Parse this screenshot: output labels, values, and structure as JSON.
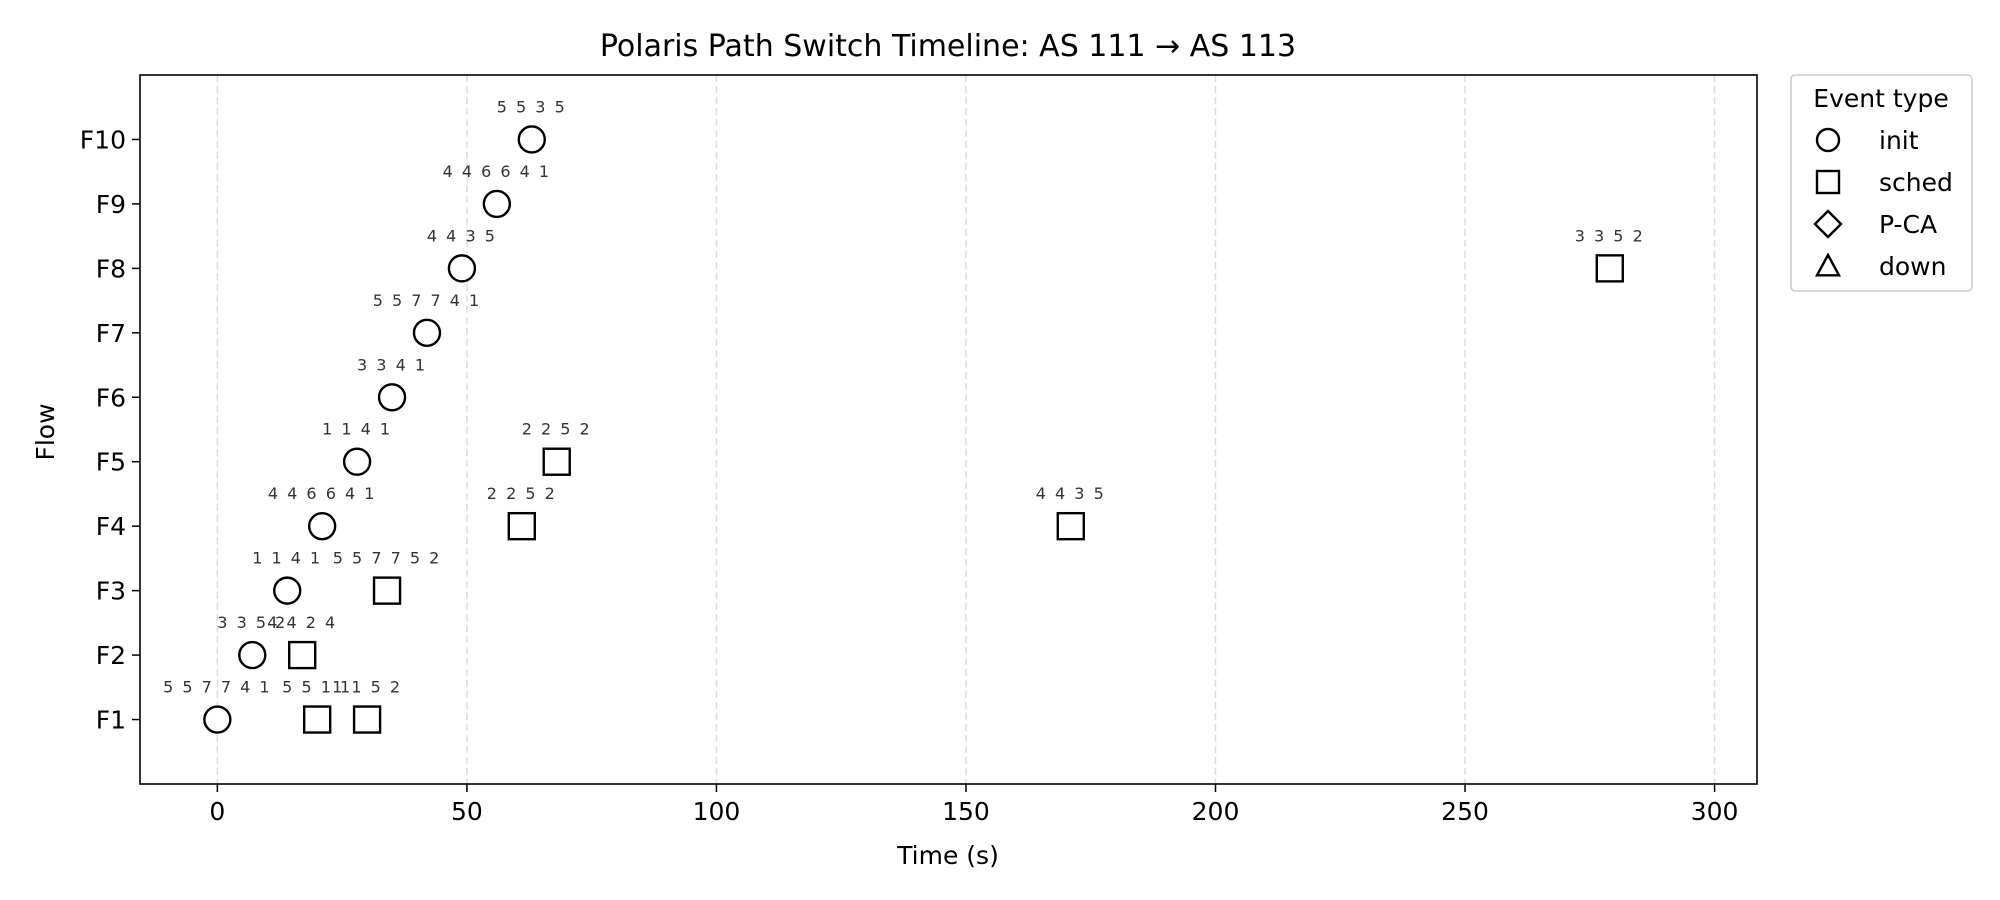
{
  "chart_data": {
    "type": "scatter",
    "title": "Polaris Path Switch Timeline: AS 111 → AS 113",
    "xlabel": "Time (s)",
    "ylabel": "Flow",
    "xlim": [
      -15.5,
      308.5
    ],
    "x_ticks": [
      0,
      50,
      100,
      150,
      200,
      250,
      300
    ],
    "x_tick_labels": [
      "0",
      "50",
      "100",
      "150",
      "200",
      "250",
      "300"
    ],
    "categories": [
      "F1",
      "F2",
      "F3",
      "F4",
      "F5",
      "F6",
      "F7",
      "F8",
      "F9",
      "F10"
    ],
    "grid": "vertical dashed",
    "legend": {
      "title": "Event type",
      "placement": "outside-right-top",
      "entries": [
        {
          "label": "init",
          "marker": "circle"
        },
        {
          "label": "sched",
          "marker": "square"
        },
        {
          "label": "P-CA",
          "marker": "diamond"
        },
        {
          "label": "down",
          "marker": "triangle"
        }
      ]
    },
    "events": [
      {
        "flow": "F1",
        "x": 0,
        "type": "init",
        "label": "5 5 7 7 4 1"
      },
      {
        "flow": "F1",
        "x": 20,
        "type": "sched",
        "label": "5 5 1 1"
      },
      {
        "flow": "F1",
        "x": 30,
        "type": "sched",
        "label": "1 1 5 2"
      },
      {
        "flow": "F2",
        "x": 7,
        "type": "init",
        "label": "3 3 5 2"
      },
      {
        "flow": "F2",
        "x": 17,
        "type": "sched",
        "label": "4 4 2 4"
      },
      {
        "flow": "F3",
        "x": 14,
        "type": "init",
        "label": "1 1 4 1"
      },
      {
        "flow": "F3",
        "x": 34,
        "type": "sched",
        "label": "5 5 7 7 5 2"
      },
      {
        "flow": "F4",
        "x": 21,
        "type": "init",
        "label": "4 4 6 6 4 1"
      },
      {
        "flow": "F4",
        "x": 61,
        "type": "sched",
        "label": "2 2 5 2"
      },
      {
        "flow": "F4",
        "x": 171,
        "type": "sched",
        "label": "4 4 3 5"
      },
      {
        "flow": "F5",
        "x": 28,
        "type": "init",
        "label": "1 1 4 1"
      },
      {
        "flow": "F5",
        "x": 68,
        "type": "sched",
        "label": "2 2 5 2"
      },
      {
        "flow": "F6",
        "x": 35,
        "type": "init",
        "label": "3 3 4 1"
      },
      {
        "flow": "F7",
        "x": 42,
        "type": "init",
        "label": "5 5 7 7 4 1"
      },
      {
        "flow": "F8",
        "x": 49,
        "type": "init",
        "label": "4 4 3 5"
      },
      {
        "flow": "F8",
        "x": 279,
        "type": "sched",
        "label": "3 3 5 2"
      },
      {
        "flow": "F9",
        "x": 56,
        "type": "init",
        "label": "4 4 6 6 4 1"
      },
      {
        "flow": "F10",
        "x": 63,
        "type": "init",
        "label": "5 5 3 5"
      }
    ]
  }
}
